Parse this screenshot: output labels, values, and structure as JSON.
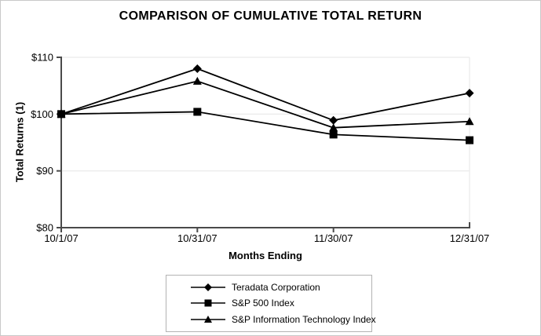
{
  "chart_data": {
    "type": "line",
    "title": "COMPARISON OF CUMULATIVE TOTAL RETURN",
    "xlabel": "Months Ending",
    "ylabel": "Total Returns (1)",
    "categories": [
      "10/1/07",
      "10/31/07",
      "11/30/07",
      "12/31/07"
    ],
    "y_tick_values": [
      80,
      90,
      100,
      110
    ],
    "y_tick_labels": [
      "$80",
      "$90",
      "$100",
      "$110"
    ],
    "ylim": [
      80,
      110
    ],
    "grid": true,
    "legend_position": "bottom-center",
    "series": [
      {
        "name": "Teradata Corporation",
        "marker": "diamond",
        "color": "#000000",
        "values": [
          100,
          108.0,
          98.9,
          103.7
        ]
      },
      {
        "name": "S&P 500 Index",
        "marker": "square",
        "color": "#000000",
        "values": [
          100,
          100.4,
          96.4,
          95.4
        ]
      },
      {
        "name": "S&P Information Technology Index",
        "marker": "triangle",
        "color": "#000000",
        "values": [
          100,
          105.8,
          97.6,
          98.7
        ]
      }
    ],
    "colors": {
      "axis": "#4a4a4a",
      "gridline": "#ededed",
      "figure_border": "#c9c9c9",
      "legend_border": "#b3b3b3",
      "background": "#ffffff",
      "text": "#000000"
    }
  }
}
